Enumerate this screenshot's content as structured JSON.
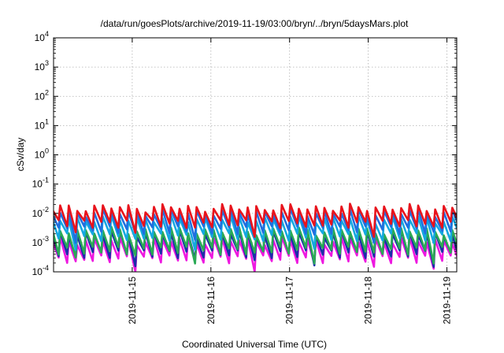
{
  "chart_data": {
    "type": "line",
    "title": "/data/run/goesPlots/archive/2019-11-19/03:00/bryn/../bryn/5daysMars.plot",
    "xlabel": "Coordinated Universal Time (UTC)",
    "ylabel": "cSv/day",
    "y_scale": "log",
    "ylim": [
      0.0001,
      10000
    ],
    "xlim": [
      "2019-11-14 00:00",
      "2019-11-19 03:00"
    ],
    "grid": true,
    "y_ticks": [
      {
        "value": 0.0001,
        "base": "10",
        "exp": "-4"
      },
      {
        "value": 0.001,
        "base": "10",
        "exp": "-3"
      },
      {
        "value": 0.01,
        "base": "10",
        "exp": "-2"
      },
      {
        "value": 0.1,
        "base": "10",
        "exp": "-1"
      },
      {
        "value": 1,
        "base": "10",
        "exp": "0"
      },
      {
        "value": 10,
        "base": "10",
        "exp": "1"
      },
      {
        "value": 100,
        "base": "10",
        "exp": "2"
      },
      {
        "value": 1000,
        "base": "10",
        "exp": "3"
      },
      {
        "value": 10000,
        "base": "10",
        "exp": "4"
      }
    ],
    "x_ticks": [
      "2019-11-15",
      "2019-11-16",
      "2019-11-17",
      "2019-11-18",
      "2019-11-19"
    ],
    "period_hours": 2.6,
    "series": [
      {
        "color": "#e8131c",
        "peak": 0.016,
        "trough": 0.0045
      },
      {
        "color": "#1f6fe0",
        "peak": 0.011,
        "trough": 0.0028
      },
      {
        "color": "#13a8e0",
        "peak": 0.0065,
        "trough": 0.0016
      },
      {
        "color": "#2aaa55",
        "peak": 0.0026,
        "trough": 0.00055
      },
      {
        "color": "#1a2fa8",
        "peak": 0.0021,
        "trough": 0.00042
      },
      {
        "color": "#ee18e0",
        "peak": 0.0012,
        "trough": 0.00028
      }
    ]
  }
}
